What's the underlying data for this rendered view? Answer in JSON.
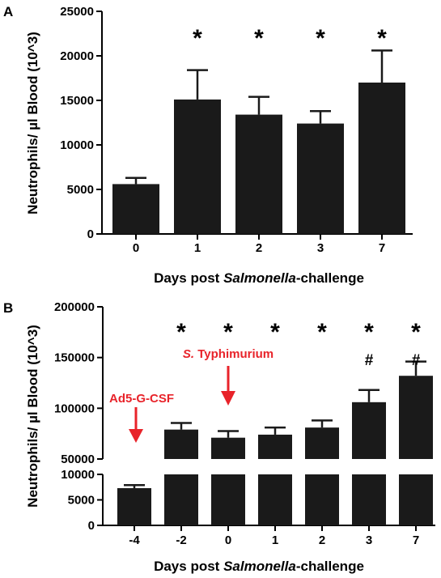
{
  "chart_data": [
    {
      "panel": "A",
      "type": "bar",
      "ylabel": "Neutrophils/ µl Blood (10^3)",
      "xlabel_prefix": "Days post ",
      "xlabel_italic": "Salmonella",
      "xlabel_suffix": "-challenge",
      "categories": [
        "0",
        "1",
        "2",
        "3",
        "7"
      ],
      "values": [
        5600,
        15100,
        13400,
        12400,
        17000
      ],
      "errors": [
        700,
        3300,
        2000,
        1400,
        3600
      ],
      "significance": [
        "",
        "*",
        "*",
        "*",
        "*"
      ],
      "ylim": [
        0,
        25000
      ],
      "yticks": [
        "0",
        "5000",
        "10000",
        "15000",
        "20000",
        "25000"
      ],
      "bar_color": "#1a1a1a"
    },
    {
      "panel": "B",
      "type": "bar",
      "ylabel": "Neutrophils/ µl Blood (10^3)",
      "xlabel_prefix": "Days post ",
      "xlabel_italic": "Salmonella",
      "xlabel_suffix": "-challenge",
      "categories": [
        "-4",
        "-2",
        "0",
        "1",
        "2",
        "3",
        "7"
      ],
      "values": [
        7300,
        79000,
        71000,
        74000,
        81000,
        106000,
        132000
      ],
      "errors": [
        600,
        6500,
        6500,
        7000,
        7000,
        12000,
        14000
      ],
      "significance": [
        "",
        "*",
        "*",
        "*",
        "*",
        "*",
        "*"
      ],
      "significance2": [
        "",
        "",
        "",
        "",
        "",
        "#",
        "#"
      ],
      "broken_axis": {
        "lower_ylim": [
          0,
          10000
        ],
        "lower_yticks": [
          "0",
          "5000",
          "10000"
        ],
        "upper_ylim": [
          50000,
          200000
        ],
        "upper_yticks": [
          "50000",
          "100000",
          "150000",
          "200000"
        ]
      },
      "annotations": [
        {
          "text": "Ad5-G-CSF",
          "category": "-4",
          "color": "#e8232a"
        },
        {
          "text_italic": "S.",
          "text": " Typhimurium",
          "category": "0",
          "color": "#e8232a"
        }
      ],
      "bar_color": "#1a1a1a"
    }
  ]
}
